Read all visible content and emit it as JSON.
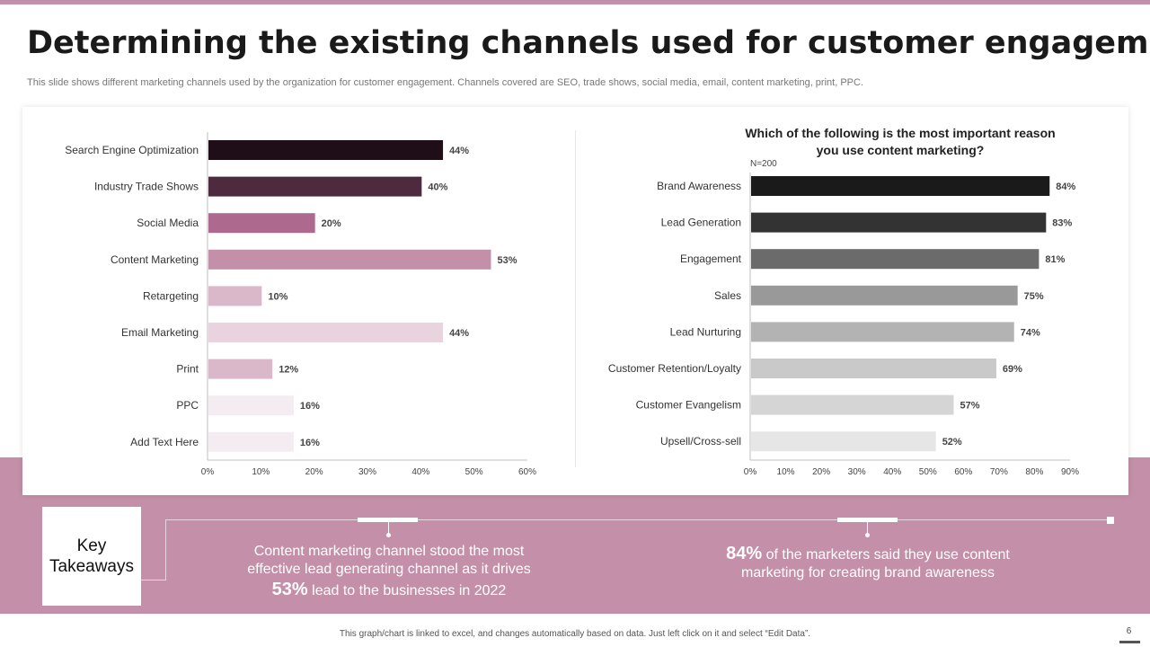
{
  "title": "Determining the existing channels used for customer engagement",
  "subtitle": "This slide shows different marketing channels used by the organization for customer engagement. Channels covered are SEO, trade shows, social media, email, content marketing, print, PPC.",
  "chart_data": [
    {
      "type": "bar",
      "orientation": "horizontal",
      "categories": [
        "Search Engine Optimization",
        "Industry Trade Shows",
        "Social Media",
        "Content Marketing",
        "Retargeting",
        "Email Marketing",
        "Print",
        "PPC",
        "Add Text Here"
      ],
      "values": [
        44,
        40,
        20,
        53,
        10,
        44,
        12,
        16,
        16
      ],
      "value_labels": [
        "44%",
        "40%",
        "20%",
        "53%",
        "10%",
        "44%",
        "12%",
        "16%",
        "16%"
      ],
      "colors": [
        "#1f0e17",
        "#4d2a3d",
        "#ae6a8e",
        "#c48fa8",
        "#dbb7ca",
        "#e8d3df",
        "#dbb7ca",
        "#f5ecf1",
        "#f5ecf1"
      ],
      "xlim": [
        0,
        60
      ],
      "ticks": [
        "0%",
        "10%",
        "20%",
        "30%",
        "40%",
        "50%",
        "60%"
      ],
      "title": "",
      "xlabel": "",
      "ylabel": ""
    },
    {
      "type": "bar",
      "orientation": "horizontal",
      "title": "Which of the following is the most important reason you use content marketing?",
      "title_lines": [
        "Which of the following is the most important reason",
        "you use content marketing?"
      ],
      "note": "N=200",
      "categories": [
        "Brand Awareness",
        "Lead Generation",
        "Engagement",
        "Sales",
        "Lead Nurturing",
        "Customer Retention/Loyalty",
        "Customer Evangelism",
        "Upsell/Cross-sell"
      ],
      "values": [
        84,
        83,
        81,
        75,
        74,
        69,
        57,
        52
      ],
      "value_labels": [
        "84%",
        "83%",
        "81%",
        "75%",
        "74%",
        "69%",
        "57%",
        "52%"
      ],
      "colors": [
        "#1a1a1a",
        "#333333",
        "#6b6b6b",
        "#999999",
        "#b3b3b3",
        "#c9c9c9",
        "#d5d5d5",
        "#e6e6e6"
      ],
      "xlim": [
        0,
        90
      ],
      "ticks": [
        "0%",
        "10%",
        "20%",
        "30%",
        "40%",
        "50%",
        "60%",
        "70%",
        "80%",
        "90%"
      ],
      "xlabel": "",
      "ylabel": ""
    }
  ],
  "takeaways": {
    "heading_line1": "Key",
    "heading_line2": "Takeaways",
    "item1": {
      "line1": "Content marketing channel stood the most",
      "line2": "effective lead generating channel as it drives",
      "highlight": "53%",
      "line3": "lead to the businesses in 2022"
    },
    "item2": {
      "highlight": "84%",
      "line1": "of the marketers said they use content",
      "line2": "marketing for creating brand awareness"
    }
  },
  "footer": "This graph/chart is linked to excel, and changes automatically based on data. Just left click on it and select “Edit Data”.",
  "page_number": "6"
}
